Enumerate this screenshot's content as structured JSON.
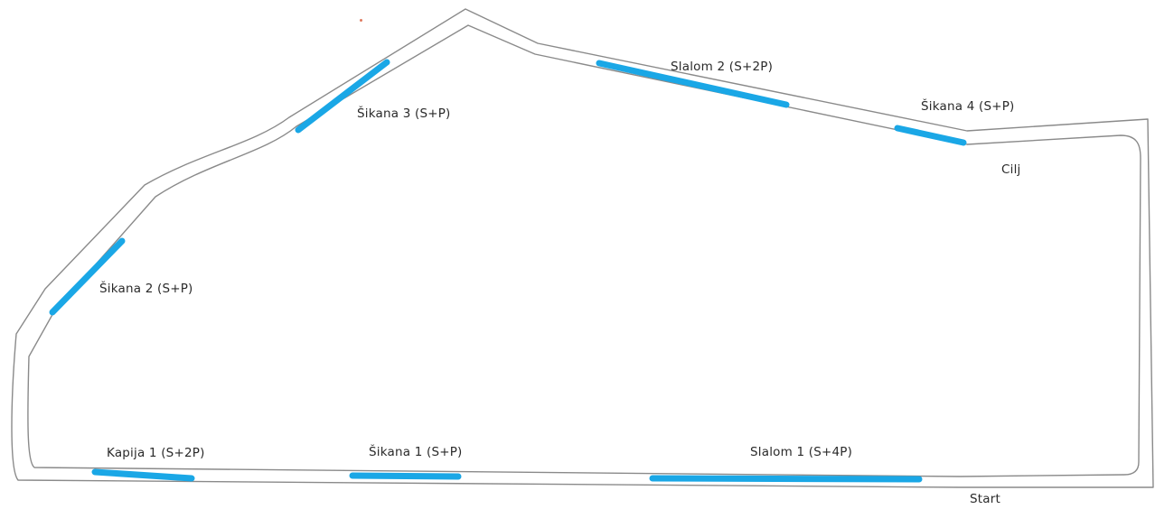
{
  "colors": {
    "track": "#8a8a8a",
    "segment": "#1aa7e6",
    "text": "#2a2a2a",
    "speck": "#e07a5f"
  },
  "labels": {
    "slalom2": "Slalom 2 (S+2P)",
    "sikana4": "Šikana 4 (S+P)",
    "sikana3": "Šikana 3 (S+P)",
    "cilj": "Cilj",
    "sikana2": "Šikana 2 (S+P)",
    "kapija1": "Kapija 1 (S+2P)",
    "sikana1": "Šikana 1 (S+P)",
    "slalom1": "Slalom 1 (S+4P)",
    "start": "Start"
  }
}
